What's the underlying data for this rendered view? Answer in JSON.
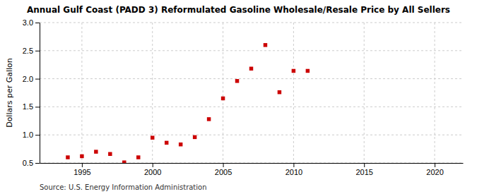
{
  "chart_data": {
    "type": "scatter",
    "title": "Annual Gulf Coast (PADD 3) Reformulated Gasoline Wholesale/Resale Price by All Sellers",
    "ylabel": "Dollars per Gallon",
    "annotations": [
      "Source: U.S. Energy Information Administration"
    ],
    "x": [
      1994,
      1995,
      1996,
      1997,
      1998,
      1999,
      2000,
      2001,
      2002,
      2003,
      2004,
      2005,
      2006,
      2007,
      2008,
      2009,
      2010,
      2011
    ],
    "values": [
      0.6,
      0.62,
      0.7,
      0.66,
      0.51,
      0.6,
      0.95,
      0.86,
      0.83,
      0.96,
      1.28,
      1.65,
      1.96,
      2.18,
      2.6,
      1.76,
      2.14,
      2.14
    ],
    "color": "#cc0000",
    "marker": "square",
    "xlim": [
      1992,
      2022
    ],
    "ylim": [
      0.5,
      3.0
    ],
    "xticks": [
      1995,
      2000,
      2005,
      2010,
      2015,
      2020
    ],
    "yticks": [
      0.5,
      {
        "value": 1.0,
        "label": "1.0"
      },
      1.5,
      {
        "value": 2.0,
        "label": "2.0"
      },
      2.5,
      {
        "value": 3.0,
        "label": "3.0"
      }
    ],
    "grid": true
  }
}
